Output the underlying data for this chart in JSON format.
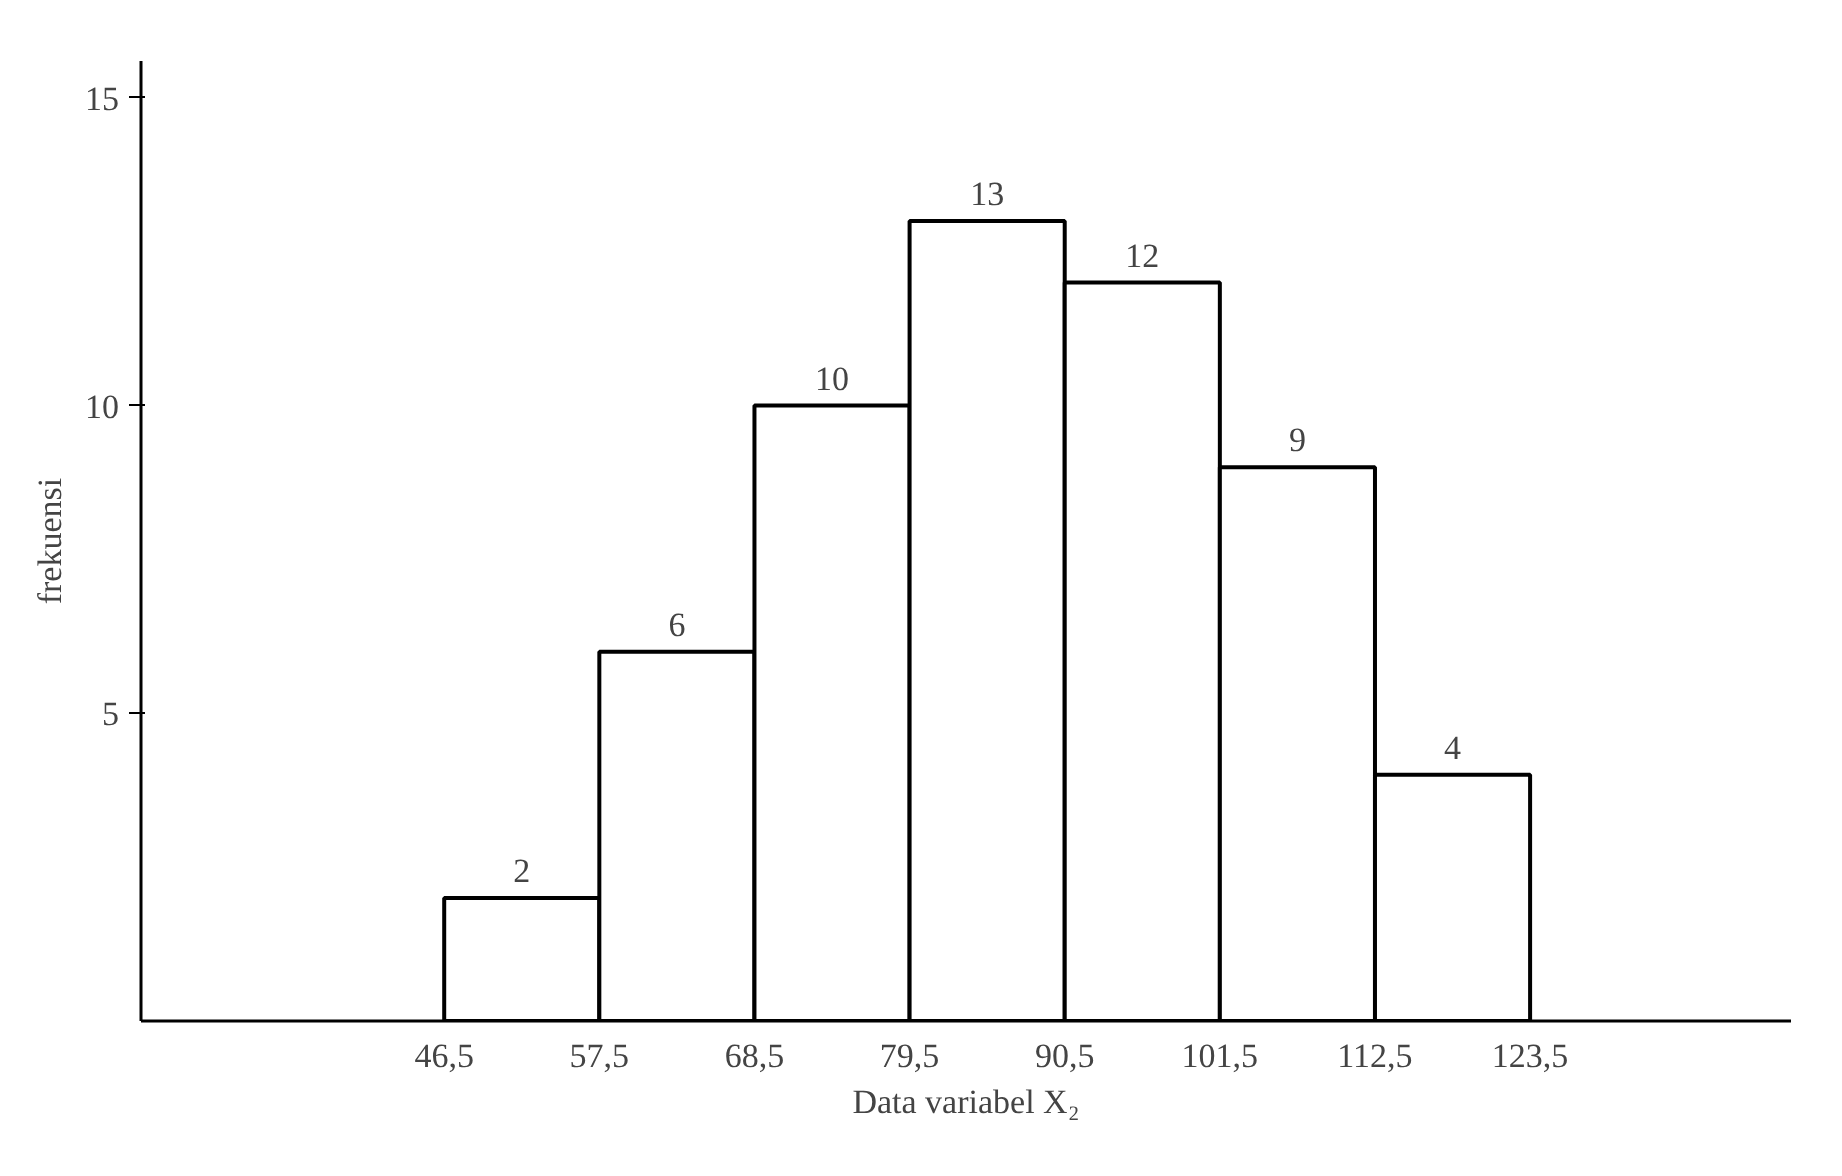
{
  "chart_data": {
    "type": "histogram",
    "xlabel": "Data variabel X₂",
    "ylabel": "frekuensi",
    "bins": [
      46.5,
      57.5,
      68.5,
      79.5,
      90.5,
      101.5,
      112.5,
      123.5
    ],
    "values": [
      2,
      6,
      10,
      13,
      12,
      9,
      4
    ],
    "color": "#ffffff",
    "xlim": [
      25,
      142
    ],
    "ylim": [
      0,
      15.6
    ],
    "xticks": [
      {
        "value": 46.5,
        "label": "46,5"
      },
      {
        "value": 57.5,
        "label": "57,5"
      },
      {
        "value": 68.5,
        "label": "68,5"
      },
      {
        "value": 79.5,
        "label": "79,5"
      },
      {
        "value": 90.5,
        "label": "90,5"
      },
      {
        "value": 101.5,
        "label": "101,5"
      },
      {
        "value": 112.5,
        "label": "112,5"
      },
      {
        "value": 123.5,
        "label": "123,5"
      }
    ],
    "yticks": [
      5,
      10,
      15
    ],
    "data_labels": true,
    "grid": false
  }
}
